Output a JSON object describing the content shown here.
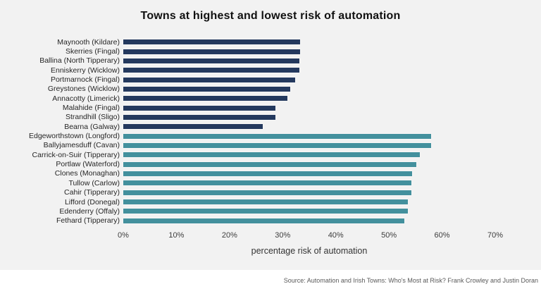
{
  "header": {
    "title": "Towns at highest and lowest risk of automation"
  },
  "footer": {
    "source": "Source: Automation and Irish Towns: Who's Most at Risk? Frank Crowley and Justin Doran"
  },
  "colors": {
    "background": "#f2f2f2",
    "footer_background": "#ffffff",
    "lowest_risk_bar": "#24395e",
    "highest_risk_bar": "#43909d",
    "title_text": "#111111",
    "label_text": "#262626",
    "source_text": "#595959"
  },
  "chart_data": {
    "type": "bar",
    "orientation": "horizontal",
    "title": "Towns at highest and lowest risk of automation",
    "xlabel": "percentage risk of automation",
    "ylabel": "",
    "xlim": [
      0,
      70
    ],
    "xtick_labels": [
      "0%",
      "10%",
      "20%",
      "30%",
      "40%",
      "50%",
      "60%",
      "70%"
    ],
    "xtick_values": [
      0,
      10,
      20,
      30,
      40,
      50,
      60,
      70
    ],
    "grid": false,
    "legend": false,
    "series": [
      {
        "name": "lowest risk",
        "color": "#24395e",
        "bars": [
          {
            "label": "Maynooth (Kildare)",
            "value": 33.3
          },
          {
            "label": "Skerries (Fingal)",
            "value": 33.3
          },
          {
            "label": "Ballina (North Tipperary)",
            "value": 33.2
          },
          {
            "label": "Enniskerry (Wicklow)",
            "value": 33.2
          },
          {
            "label": "Portmarnock (Fingal)",
            "value": 32.3
          },
          {
            "label": "Greystones (Wicklow)",
            "value": 31.4
          },
          {
            "label": "Annacotty (Limerick)",
            "value": 30.9
          },
          {
            "label": "Malahide (Fingal)",
            "value": 28.7
          },
          {
            "label": "Strandhill (Sligo)",
            "value": 28.6
          },
          {
            "label": "Bearna (Galway)",
            "value": 26.2
          }
        ]
      },
      {
        "name": "highest risk",
        "color": "#43909d",
        "bars": [
          {
            "label": "Edgeworthstown (Longford)",
            "value": 57.9
          },
          {
            "label": "Ballyjamesduff (Cavan)",
            "value": 57.9
          },
          {
            "label": "Carrick-on-Suir (Tipperary)",
            "value": 55.8
          },
          {
            "label": "Portlaw (Waterford)",
            "value": 55.2
          },
          {
            "label": "Clones (Monaghan)",
            "value": 54.4
          },
          {
            "label": "Tullow (Carlow)",
            "value": 54.2
          },
          {
            "label": "Cahir (Tipperary)",
            "value": 54.2
          },
          {
            "label": "Lifford (Donegal)",
            "value": 53.5
          },
          {
            "label": "Edenderry (Offaly)",
            "value": 53.5
          },
          {
            "label": "Fethard (Tipperary)",
            "value": 52.9
          }
        ]
      }
    ]
  }
}
